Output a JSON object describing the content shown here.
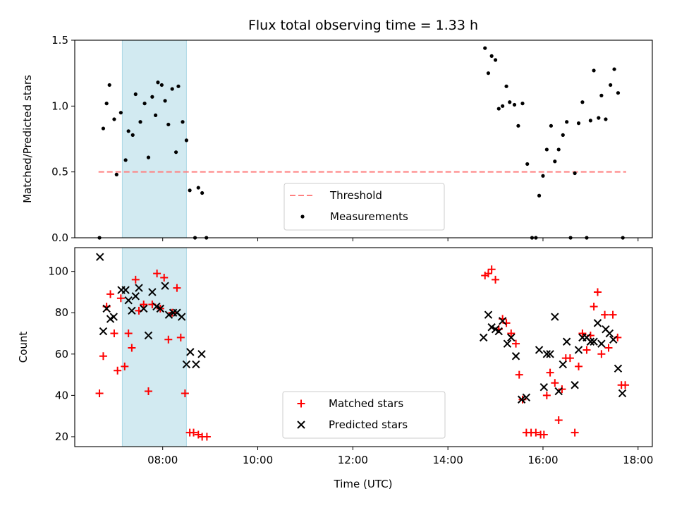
{
  "chart_data": {
    "title": "Flux total observing time = 1.33 h",
    "xlabel": "Time (UTC)",
    "x_ticks": [
      "08:00",
      "10:00",
      "12:00",
      "14:00",
      "16:00",
      "18:00"
    ],
    "x_ticks_hours": [
      8,
      10,
      12,
      14,
      16,
      18
    ],
    "xlim_hours": [
      6.15,
      18.3
    ],
    "shaded_span_hours": [
      7.15,
      8.5
    ],
    "shaded_color": "#add8e6",
    "panels": [
      {
        "type": "scatter",
        "ylabel": "Matched/Predicted stars",
        "ylim": [
          0,
          1.5
        ],
        "yticks": [
          0.0,
          0.5,
          1.0,
          1.5
        ],
        "ytick_labels": [
          "0.0",
          "0.5",
          "1.0",
          "1.5"
        ],
        "legend_position": "lower-center",
        "threshold": {
          "name": "Threshold",
          "y": 0.5,
          "x_range": [
            6.65,
            17.75
          ],
          "color": "#ff8080"
        },
        "series": [
          {
            "name": "Measurements",
            "color": "#000000",
            "marker": "dot",
            "points": [
              [
                6.67,
                0.0
              ],
              [
                6.75,
                0.83
              ],
              [
                6.82,
                1.02
              ],
              [
                6.88,
                1.16
              ],
              [
                6.98,
                0.9
              ],
              [
                7.03,
                0.48
              ],
              [
                7.12,
                0.95
              ],
              [
                7.22,
                0.59
              ],
              [
                7.28,
                0.81
              ],
              [
                7.37,
                0.78
              ],
              [
                7.43,
                1.09
              ],
              [
                7.53,
                0.88
              ],
              [
                7.62,
                1.02
              ],
              [
                7.7,
                0.61
              ],
              [
                7.78,
                1.07
              ],
              [
                7.85,
                0.93
              ],
              [
                7.9,
                1.18
              ],
              [
                7.98,
                1.16
              ],
              [
                8.05,
                1.04
              ],
              [
                8.12,
                0.86
              ],
              [
                8.2,
                1.13
              ],
              [
                8.28,
                0.65
              ],
              [
                8.33,
                1.15
              ],
              [
                8.42,
                0.88
              ],
              [
                8.5,
                0.74
              ],
              [
                8.57,
                0.36
              ],
              [
                8.68,
                0.0
              ],
              [
                8.75,
                0.38
              ],
              [
                8.83,
                0.34
              ],
              [
                8.92,
                0.0
              ],
              [
                14.78,
                1.44
              ],
              [
                14.85,
                1.25
              ],
              [
                14.92,
                1.38
              ],
              [
                15.0,
                1.35
              ],
              [
                15.07,
                0.98
              ],
              [
                15.15,
                1.0
              ],
              [
                15.23,
                1.15
              ],
              [
                15.3,
                1.03
              ],
              [
                15.4,
                1.01
              ],
              [
                15.48,
                0.85
              ],
              [
                15.57,
                1.02
              ],
              [
                15.67,
                0.56
              ],
              [
                15.77,
                0.0
              ],
              [
                15.85,
                0.0
              ],
              [
                15.92,
                0.32
              ],
              [
                16.0,
                0.47
              ],
              [
                16.08,
                0.67
              ],
              [
                16.17,
                0.85
              ],
              [
                16.25,
                0.58
              ],
              [
                16.33,
                0.67
              ],
              [
                16.42,
                0.78
              ],
              [
                16.5,
                0.88
              ],
              [
                16.58,
                0.0
              ],
              [
                16.67,
                0.49
              ],
              [
                16.75,
                0.87
              ],
              [
                16.83,
                1.03
              ],
              [
                16.92,
                0.0
              ],
              [
                17.0,
                0.89
              ],
              [
                17.07,
                1.27
              ],
              [
                17.17,
                0.91
              ],
              [
                17.23,
                1.08
              ],
              [
                17.32,
                0.9
              ],
              [
                17.42,
                1.16
              ],
              [
                17.5,
                1.28
              ],
              [
                17.58,
                1.1
              ],
              [
                17.68,
                0.0
              ]
            ]
          }
        ]
      },
      {
        "type": "scatter",
        "ylabel": "Count",
        "ylim": [
          15.2,
          111.5
        ],
        "yticks": [
          20,
          40,
          60,
          80,
          100
        ],
        "ytick_labels": [
          "20",
          "40",
          "60",
          "80",
          "100"
        ],
        "legend_position": "lower-center",
        "series": [
          {
            "name": "Matched stars",
            "color": "#ff0000",
            "marker": "plus",
            "points": [
              [
                6.67,
                41
              ],
              [
                6.75,
                59
              ],
              [
                6.82,
                83
              ],
              [
                6.9,
                89
              ],
              [
                6.98,
                70
              ],
              [
                7.05,
                52
              ],
              [
                7.12,
                87
              ],
              [
                7.2,
                54
              ],
              [
                7.28,
                70
              ],
              [
                7.35,
                63
              ],
              [
                7.43,
                96
              ],
              [
                7.5,
                81
              ],
              [
                7.6,
                84
              ],
              [
                7.7,
                42
              ],
              [
                7.78,
                84
              ],
              [
                7.88,
                99
              ],
              [
                7.95,
                82
              ],
              [
                8.03,
                97
              ],
              [
                8.12,
                67
              ],
              [
                8.2,
                80
              ],
              [
                8.3,
                92
              ],
              [
                8.38,
                68
              ],
              [
                8.47,
                41
              ],
              [
                8.57,
                22
              ],
              [
                8.65,
                22
              ],
              [
                8.75,
                21
              ],
              [
                8.83,
                20
              ],
              [
                8.93,
                20
              ],
              [
                14.78,
                98
              ],
              [
                14.85,
                99
              ],
              [
                14.92,
                101
              ],
              [
                15.0,
                96
              ],
              [
                15.07,
                72
              ],
              [
                15.15,
                77
              ],
              [
                15.23,
                75
              ],
              [
                15.33,
                70
              ],
              [
                15.43,
                65
              ],
              [
                15.5,
                50
              ],
              [
                15.57,
                38
              ],
              [
                15.65,
                22
              ],
              [
                15.75,
                22
              ],
              [
                15.85,
                22
              ],
              [
                15.95,
                21
              ],
              [
                16.02,
                21
              ],
              [
                16.08,
                40
              ],
              [
                16.15,
                51
              ],
              [
                16.25,
                46
              ],
              [
                16.33,
                28
              ],
              [
                16.4,
                43
              ],
              [
                16.48,
                58
              ],
              [
                16.57,
                58
              ],
              [
                16.67,
                22
              ],
              [
                16.75,
                54
              ],
              [
                16.83,
                70
              ],
              [
                16.92,
                62
              ],
              [
                17.0,
                69
              ],
              [
                17.07,
                83
              ],
              [
                17.15,
                90
              ],
              [
                17.23,
                60
              ],
              [
                17.3,
                79
              ],
              [
                17.38,
                63
              ],
              [
                17.47,
                79
              ],
              [
                17.57,
                68
              ],
              [
                17.65,
                45
              ],
              [
                17.73,
                45
              ]
            ]
          },
          {
            "name": "Predicted stars",
            "color": "#000000",
            "marker": "cross",
            "points": [
              [
                6.68,
                107
              ],
              [
                6.75,
                71
              ],
              [
                6.82,
                82
              ],
              [
                6.9,
                77
              ],
              [
                6.97,
                78
              ],
              [
                7.13,
                91
              ],
              [
                7.22,
                91
              ],
              [
                7.28,
                86
              ],
              [
                7.35,
                81
              ],
              [
                7.43,
                88
              ],
              [
                7.5,
                92
              ],
              [
                7.6,
                82
              ],
              [
                7.7,
                69
              ],
              [
                7.78,
                90
              ],
              [
                7.87,
                83
              ],
              [
                7.95,
                82
              ],
              [
                8.05,
                93
              ],
              [
                8.13,
                79
              ],
              [
                8.22,
                80
              ],
              [
                8.3,
                80
              ],
              [
                8.4,
                78
              ],
              [
                8.5,
                55
              ],
              [
                8.58,
                61
              ],
              [
                8.7,
                55
              ],
              [
                8.82,
                60
              ],
              [
                14.75,
                68
              ],
              [
                14.85,
                79
              ],
              [
                14.92,
                73
              ],
              [
                15.0,
                72
              ],
              [
                15.07,
                71
              ],
              [
                15.15,
                76
              ],
              [
                15.25,
                65
              ],
              [
                15.33,
                68
              ],
              [
                15.43,
                59
              ],
              [
                15.55,
                38
              ],
              [
                15.65,
                39
              ],
              [
                15.92,
                62
              ],
              [
                16.02,
                44
              ],
              [
                16.08,
                60
              ],
              [
                16.15,
                60
              ],
              [
                16.25,
                78
              ],
              [
                16.33,
                42
              ],
              [
                16.42,
                55
              ],
              [
                16.5,
                66
              ],
              [
                16.67,
                45
              ],
              [
                16.75,
                62
              ],
              [
                16.83,
                68
              ],
              [
                16.92,
                68
              ],
              [
                17.0,
                66
              ],
              [
                17.07,
                66
              ],
              [
                17.15,
                75
              ],
              [
                17.23,
                65
              ],
              [
                17.32,
                72
              ],
              [
                17.4,
                70
              ],
              [
                17.48,
                67
              ],
              [
                17.58,
                53
              ],
              [
                17.67,
                41
              ]
            ]
          }
        ]
      }
    ]
  }
}
